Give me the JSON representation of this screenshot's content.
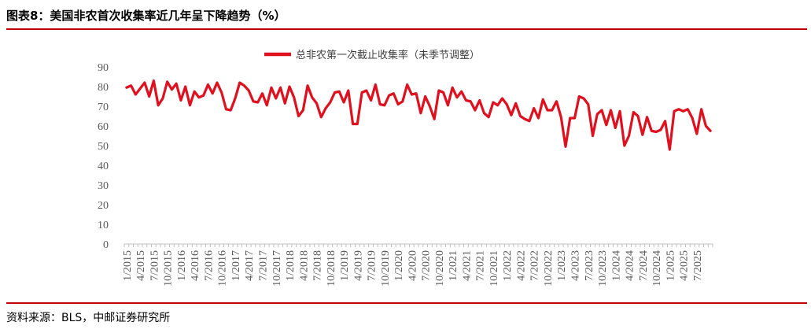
{
  "figure": {
    "title": "图表8：美国非农首次收集率近几年呈下降趋势（%）",
    "source": "资料来源：BLS，中邮证券研究所"
  },
  "colors": {
    "series": "#e0101e",
    "accent": "#c00000",
    "axis": "#bfbfbf",
    "text": "#595959"
  },
  "chart_data": {
    "type": "line",
    "title": "",
    "xlabel": "",
    "ylabel": "",
    "ylim": [
      0,
      90
    ],
    "yticks": [
      0,
      10,
      20,
      30,
      40,
      50,
      60,
      70,
      80,
      90
    ],
    "grid": false,
    "legend": "top-center",
    "x_ticks": [
      "1/2015",
      "4/2015",
      "7/2015",
      "10/2015",
      "1/2016",
      "4/2016",
      "7/2016",
      "10/2016",
      "1/2017",
      "4/2017",
      "7/2017",
      "10/2017",
      "1/2018",
      "4/2018",
      "7/2018",
      "10/2018",
      "1/2019",
      "4/2019",
      "7/2019",
      "10/2019",
      "1/2020",
      "4/2020",
      "7/2020",
      "10/2020",
      "1/2021",
      "4/2021",
      "7/2021",
      "10/2021",
      "1/2022",
      "4/2022",
      "7/2022",
      "10/2022",
      "1/2023",
      "4/2023",
      "7/2023",
      "10/2023",
      "1/2024",
      "4/2024",
      "7/2024",
      "10/2024",
      "1/2025",
      "4/2025",
      "7/2025"
    ],
    "series": [
      {
        "name": "总非农第一次截止收集率（未季节调整）",
        "start": "1/2015",
        "frequency": "monthly",
        "values": [
          79.5,
          80.5,
          76.0,
          79.0,
          82.0,
          75.0,
          83.0,
          70.5,
          74.0,
          82.5,
          78.5,
          81.5,
          73.0,
          80.0,
          70.5,
          77.5,
          74.5,
          75.5,
          81.0,
          76.5,
          82.0,
          77.0,
          68.5,
          68.0,
          74.0,
          82.0,
          80.5,
          78.0,
          72.5,
          72.0,
          76.5,
          70.5,
          79.5,
          74.0,
          79.5,
          71.5,
          80.0,
          74.5,
          65.0,
          68.0,
          80.5,
          74.5,
          71.5,
          64.5,
          69.0,
          72.0,
          77.0,
          77.5,
          72.0,
          78.0,
          61.0,
          61.0,
          77.0,
          78.0,
          73.0,
          81.0,
          71.0,
          70.5,
          75.5,
          76.5,
          71.0,
          72.5,
          81.0,
          76.0,
          76.5,
          66.5,
          75.0,
          70.0,
          63.5,
          78.0,
          77.0,
          70.5,
          79.5,
          74.5,
          77.5,
          73.0,
          72.5,
          68.0,
          73.0,
          66.5,
          64.5,
          72.0,
          70.5,
          74.0,
          71.0,
          65.5,
          71.5,
          65.0,
          63.5,
          62.5,
          69.0,
          64.0,
          73.5,
          68.0,
          68.0,
          72.5,
          64.5,
          49.5,
          64.0,
          64.0,
          75.0,
          74.0,
          71.0,
          55.0,
          66.0,
          68.0,
          60.5,
          68.0,
          59.0,
          67.5,
          50.0,
          55.0,
          67.0,
          65.0,
          55.5,
          64.5,
          57.5,
          57.0,
          58.0,
          62.5,
          48.0,
          67.5,
          68.5,
          67.5,
          68.5,
          64.0,
          56.0,
          68.5,
          60.0,
          57.5
        ]
      }
    ]
  }
}
